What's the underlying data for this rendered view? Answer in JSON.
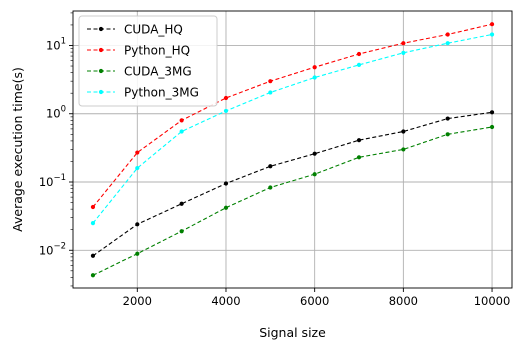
{
  "chart_data": {
    "type": "line",
    "xlabel": "Signal size",
    "ylabel": "Average execution time(s)",
    "xscale": "linear",
    "yscale": "log",
    "xlim": [
      550,
      10450
    ],
    "ylim": [
      0.0028,
      32
    ],
    "x": [
      1000,
      2000,
      3000,
      4000,
      5000,
      6000,
      7000,
      8000,
      9000,
      10000
    ],
    "x_ticks": [
      2000,
      4000,
      6000,
      8000,
      10000
    ],
    "y_ticks": [
      0.01,
      0.1,
      1,
      10
    ],
    "grid": true,
    "legend_position": "top-left",
    "series": [
      {
        "name": "CUDA_HQ",
        "color": "#000000",
        "line_style": "dashed",
        "marker": "dot",
        "values": [
          0.0083,
          0.024,
          0.048,
          0.095,
          0.17,
          0.26,
          0.41,
          0.55,
          0.85,
          1.05
        ]
      },
      {
        "name": "Python_HQ",
        "color": "#ff0000",
        "line_style": "dashed",
        "marker": "dot",
        "values": [
          0.043,
          0.27,
          0.8,
          1.7,
          3.0,
          4.8,
          7.5,
          10.8,
          14.5,
          20.5
        ]
      },
      {
        "name": "CUDA_3MG",
        "color": "#008000",
        "line_style": "dashed",
        "marker": "dot",
        "values": [
          0.0043,
          0.0089,
          0.019,
          0.042,
          0.083,
          0.13,
          0.23,
          0.3,
          0.5,
          0.64
        ]
      },
      {
        "name": "Python_3MG",
        "color": "#00ffff",
        "line_style": "dashed",
        "marker": "dot",
        "values": [
          0.025,
          0.16,
          0.55,
          1.1,
          2.05,
          3.4,
          5.2,
          7.8,
          10.8,
          14.5
        ]
      }
    ]
  }
}
